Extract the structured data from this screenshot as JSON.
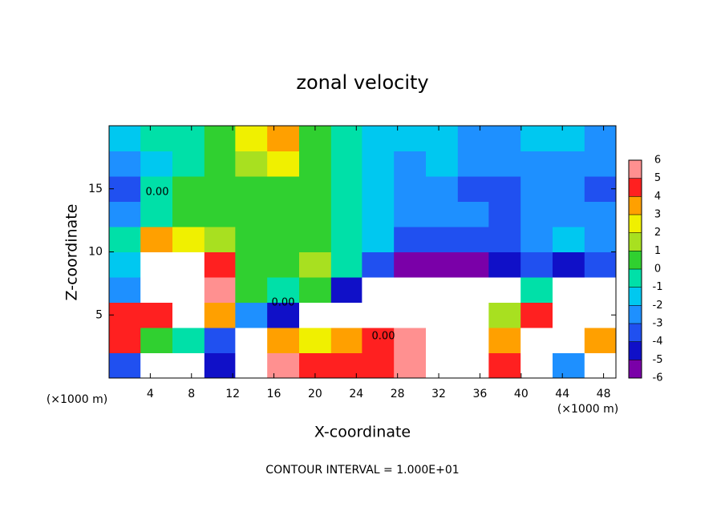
{
  "chart_data": {
    "type": "contour",
    "title": "zonal velocity",
    "x_label": "X-coordinate",
    "y_label": "Z-coordinate",
    "x_unit_label": "(×1000 m)",
    "y_unit_label": "(×1000 m)",
    "footnote": "CONTOUR INTERVAL = 1.000E+01",
    "contour_labels": [
      "0.00",
      "0.00",
      "0.00"
    ],
    "xlim": [
      0,
      49.2
    ],
    "ylim": [
      0,
      20
    ],
    "xticks": [
      4,
      8,
      12,
      16,
      20,
      24,
      28,
      32,
      36,
      40,
      44,
      48
    ],
    "yticks": [
      5,
      10,
      15
    ],
    "x": [
      1.5,
      4.6,
      7.7,
      10.8,
      13.8,
      16.9,
      20,
      23.1,
      26.1,
      29.2,
      32.3,
      35.4,
      38.4,
      41.5,
      44.6,
      47.7
    ],
    "y": [
      1,
      3,
      5,
      7,
      9,
      11,
      13,
      15,
      17,
      19
    ],
    "z": [
      [
        -3,
        8,
        8,
        -4,
        8,
        6,
        5,
        5,
        5,
        6,
        8,
        8,
        5,
        8,
        -2,
        8
      ],
      [
        5,
        1,
        0,
        -3,
        8,
        4,
        3,
        4,
        5,
        6,
        8,
        8,
        4,
        8,
        8,
        4
      ],
      [
        5,
        5,
        8,
        4,
        -2,
        -4,
        7,
        8,
        8,
        8,
        8,
        8,
        2,
        5,
        8,
        8
      ],
      [
        -2,
        8,
        8,
        6,
        1,
        0,
        1,
        -4,
        8,
        8,
        8,
        8,
        8,
        0,
        8,
        8
      ],
      [
        -1,
        7,
        8,
        5,
        1,
        1,
        2,
        0,
        -3,
        -5,
        -5,
        -5,
        -4,
        -3,
        -4,
        -3
      ],
      [
        0,
        4,
        3,
        2,
        1,
        1,
        1,
        0,
        -1,
        -3,
        -3,
        -3,
        -3,
        -2,
        -1,
        -2
      ],
      [
        -2,
        0,
        1,
        1,
        1,
        1,
        1,
        0,
        -1,
        -2,
        -2,
        -2,
        -3,
        -2,
        -2,
        -2
      ],
      [
        -3,
        0,
        1,
        1,
        1,
        1,
        1,
        0,
        -1,
        -2,
        -2,
        -3,
        -3,
        -2,
        -2,
        -3
      ],
      [
        -2,
        -1,
        0,
        1,
        2,
        3,
        1,
        0,
        -1,
        -2,
        -1,
        -2,
        -2,
        -2,
        -2,
        -2
      ],
      [
        -1,
        0,
        0,
        1,
        3,
        4,
        1,
        0,
        -1,
        -1,
        -1,
        -2,
        -2,
        -1,
        -1,
        -2
      ]
    ],
    "colorbar": {
      "levels": [
        -6,
        -5,
        -4,
        -3,
        -2,
        -1,
        0,
        1,
        2,
        3,
        4,
        5,
        6
      ],
      "colors": [
        "#7a00a8",
        "#1010c8",
        "#2050f0",
        "#1e90ff",
        "#00c8f0",
        "#00e0a8",
        "#30d030",
        "#a8e020",
        "#f0f000",
        "#ffa000",
        "#ff2020",
        "#ff9090"
      ]
    }
  }
}
